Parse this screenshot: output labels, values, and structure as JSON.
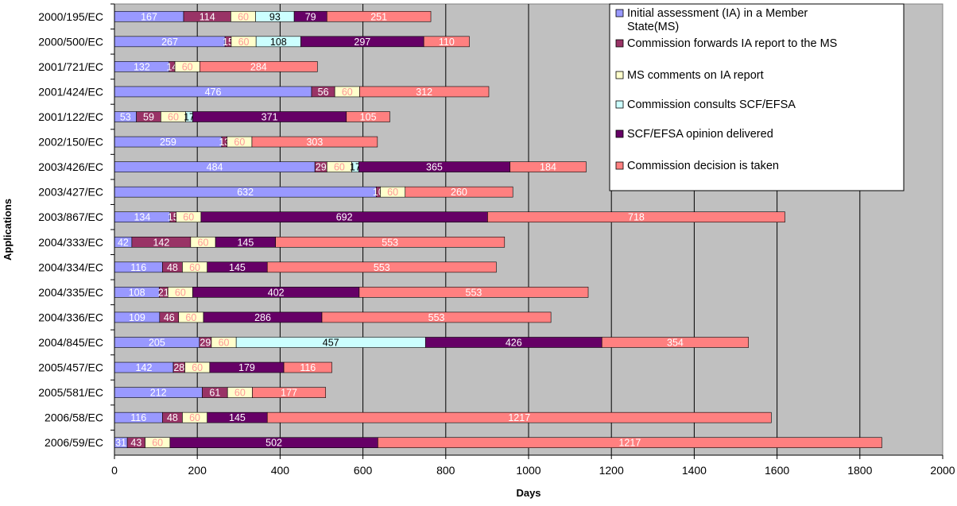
{
  "chart_data": {
    "type": "bar",
    "orientation": "horizontal",
    "stacked": true,
    "title": "",
    "xlabel": "Days",
    "ylabel": "Applications",
    "xlim": [
      0,
      2000
    ],
    "xticks": [
      0,
      200,
      400,
      600,
      800,
      1000,
      1200,
      1400,
      1600,
      1800,
      2000
    ],
    "grid": "vertical",
    "legend_position": "top-right",
    "categories": [
      "2000/195/EC",
      "2000/500/EC",
      "2001/721/EC",
      "2001/424/EC",
      "2001/122/EC",
      "2002/150/EC",
      "2003/426/EC",
      "2003/427/EC",
      "2003/867/EC",
      "2004/333/EC",
      "2004/334/EC",
      "2004/335/EC",
      "2004/336/EC",
      "2004/845/EC",
      "2005/457/EC",
      "2005/581/EC",
      "2006/58/EC",
      "2006/59/EC"
    ],
    "series": [
      {
        "name": "Initial assessment (IA) in a Member State(MS)",
        "color": "#9999ff",
        "label_color": "#ffffff",
        "values": [
          167,
          267,
          132,
          476,
          53,
          259,
          484,
          632,
          134,
          42,
          116,
          108,
          109,
          205,
          142,
          212,
          116,
          31
        ]
      },
      {
        "name": "Commission forwards IA report to the MS",
        "color": "#993366",
        "label_color": "#ffffff",
        "values": [
          114,
          15,
          14,
          56,
          59,
          13,
          29,
          10,
          15,
          142,
          48,
          21,
          46,
          29,
          28,
          61,
          48,
          43
        ]
      },
      {
        "name": "MS comments on IA report",
        "color": "#ffffcc",
        "label_color": "#ff9999",
        "values": [
          60,
          60,
          60,
          60,
          60,
          60,
          60,
          60,
          60,
          60,
          60,
          60,
          60,
          60,
          60,
          60,
          60,
          60
        ]
      },
      {
        "name": "Commission consults SCF/EFSA",
        "color": "#ccffff",
        "label_color": "#000000",
        "values": [
          93,
          108,
          0,
          0,
          17,
          0,
          17,
          0,
          0,
          0,
          0,
          0,
          0,
          457,
          0,
          0,
          0,
          0
        ]
      },
      {
        "name": "SCF/EFSA opinion delivered",
        "color": "#660066",
        "label_color": "#ffffff",
        "values": [
          79,
          297,
          0,
          0,
          371,
          0,
          365,
          0,
          692,
          145,
          145,
          402,
          286,
          426,
          179,
          0,
          145,
          502
        ]
      },
      {
        "name": "Commission decision is taken",
        "color": "#ff8080",
        "label_color": "#ffffff",
        "values": [
          251,
          110,
          284,
          312,
          105,
          303,
          184,
          260,
          718,
          553,
          553,
          553,
          553,
          354,
          116,
          177,
          1217,
          1217
        ]
      }
    ]
  }
}
